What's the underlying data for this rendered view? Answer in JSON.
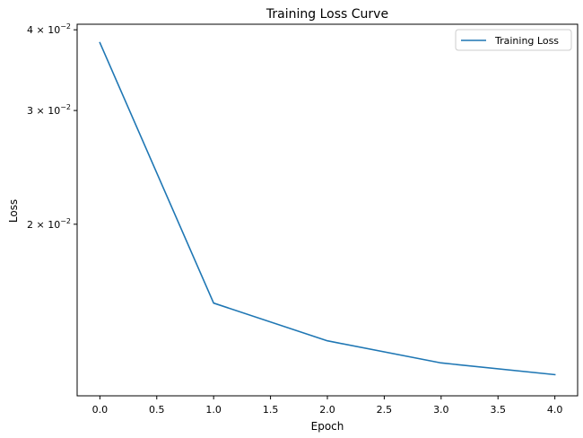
{
  "chart_data": {
    "type": "line",
    "title": "Training Loss Curve",
    "xlabel": "Epoch",
    "ylabel": "Loss",
    "x": [
      0,
      1,
      2,
      3,
      4
    ],
    "series": [
      {
        "name": "Training Loss",
        "values": [
          0.0382,
          0.0151,
          0.0132,
          0.0122,
          0.0117
        ],
        "color": "#1f77b4"
      }
    ],
    "xlim": [
      -0.2,
      4.2
    ],
    "ylim": [
      0.01085,
      0.0408
    ],
    "yscale": "log",
    "x_ticks": [
      0.0,
      0.5,
      1.0,
      1.5,
      2.0,
      2.5,
      3.0,
      3.5,
      4.0
    ],
    "x_tick_labels": [
      "0.0",
      "0.5",
      "1.0",
      "1.5",
      "2.0",
      "2.5",
      "3.0",
      "3.5",
      "4.0"
    ],
    "y_ticks": [
      {
        "value": 0.04,
        "mantissa": "4",
        "base": "10",
        "exponent": "−2"
      },
      {
        "value": 0.03,
        "mantissa": "3",
        "base": "10",
        "exponent": "−2"
      },
      {
        "value": 0.02,
        "mantissa": "2",
        "base": "10",
        "exponent": "−2"
      }
    ],
    "grid": false,
    "legend_position": "top-right"
  }
}
